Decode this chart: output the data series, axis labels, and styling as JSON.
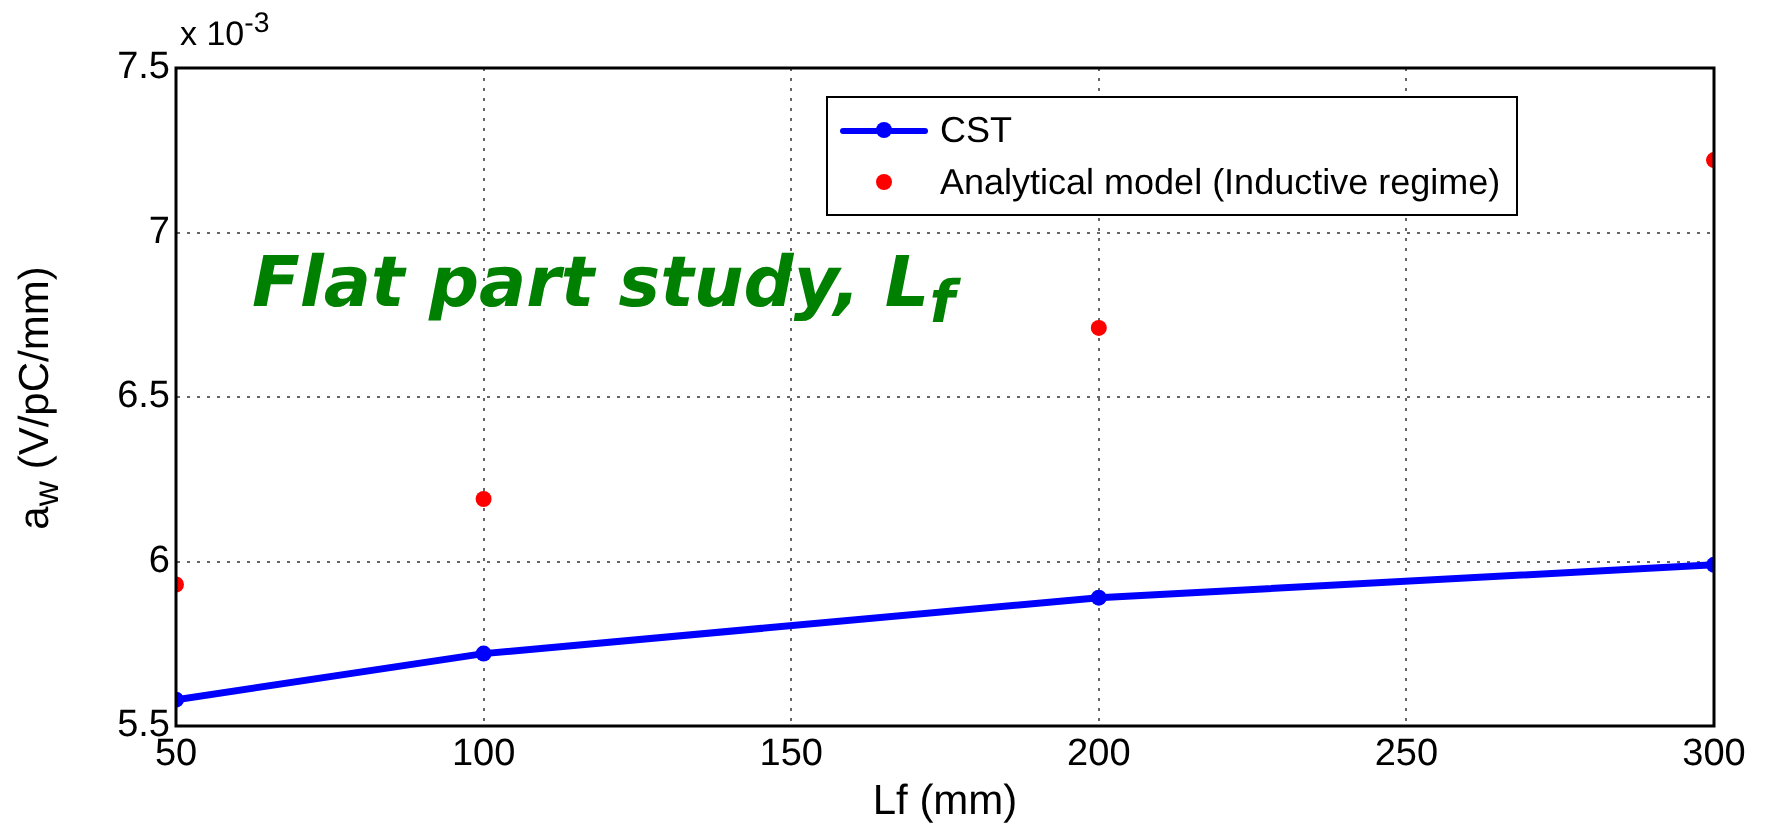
{
  "chart_data": {
    "type": "line",
    "xlabel": "Lf (mm)",
    "ylabel": "a$_{w}$ (V/pC/mm)",
    "annotations": [
      "x 10$^{-3}$",
      "Flat part study, L$_{f}$"
    ],
    "x": [
      50,
      100,
      200,
      300
    ],
    "series": [
      {
        "name": "CST",
        "type": "line",
        "color": "#0000ff",
        "marker": "circle",
        "line_style": "solid",
        "values": [
          5.58,
          5.72,
          5.89,
          5.99
        ]
      },
      {
        "name": "Analytical model (Inductive regime)",
        "type": "scatter",
        "color": "#ff0000",
        "marker": "circle",
        "values": [
          5.93,
          6.19,
          6.71,
          7.22
        ]
      }
    ],
    "xlim": [
      50,
      300
    ],
    "xticks": [
      50,
      100,
      150,
      200,
      250,
      300
    ],
    "ylim": [
      5.5,
      7.5
    ],
    "yticks": [
      5.5,
      6,
      6.5,
      7,
      7.5
    ],
    "grid": true,
    "legend": "top right"
  }
}
